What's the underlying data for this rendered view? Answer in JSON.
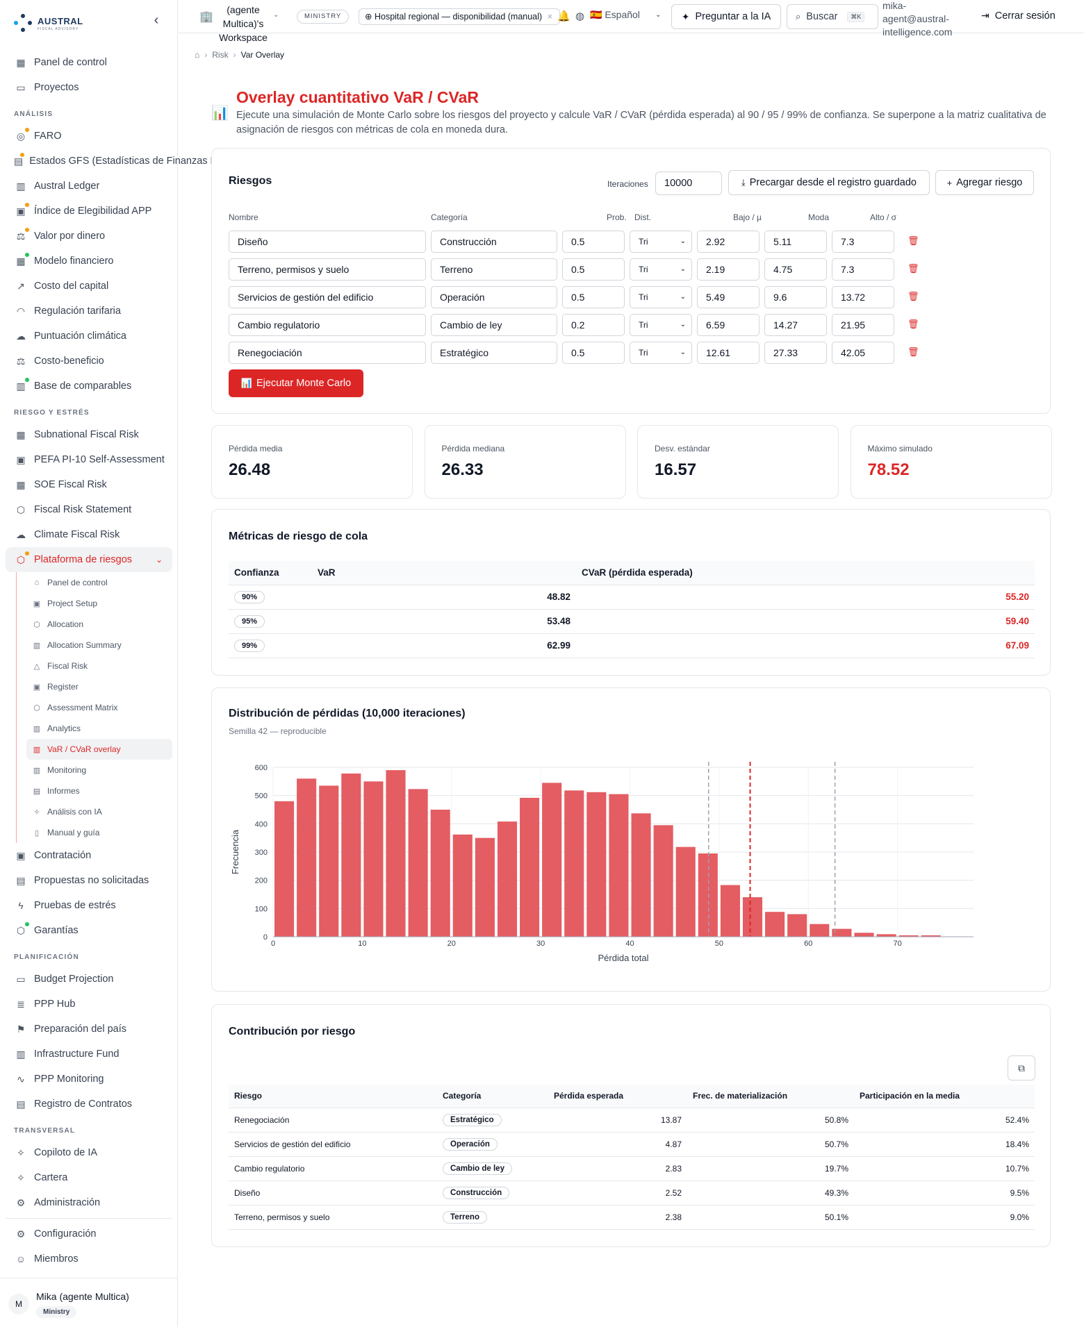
{
  "brand": {
    "name": "AUSTRAL",
    "sub": "FISCAL ADVISORY"
  },
  "sidebar": {
    "top": [
      {
        "label": "Panel de control",
        "icon": "grid-icon"
      },
      {
        "label": "Proyectos",
        "icon": "folder-icon"
      }
    ],
    "sections": [
      {
        "title": "ANÁLISIS",
        "items": [
          {
            "label": "FARO",
            "icon": "compass-icon",
            "dot": "#f59e0b"
          },
          {
            "label": "Estados GFS (Estadísticas de Finanzas Públicas)",
            "icon": "doc-icon",
            "dot": "#f59e0b"
          },
          {
            "label": "Austral Ledger",
            "icon": "ledger-icon"
          },
          {
            "label": "Índice de Elegibilidad APP",
            "icon": "clipboard-icon",
            "dot": "#f59e0b"
          },
          {
            "label": "Valor por dinero",
            "icon": "scale-icon",
            "dot": "#f59e0b"
          },
          {
            "label": "Modelo financiero",
            "icon": "table-icon",
            "dot": "#22c55e"
          },
          {
            "label": "Costo del capital",
            "icon": "trend-icon"
          },
          {
            "label": "Regulación tarifaria",
            "icon": "gauge-icon"
          },
          {
            "label": "Puntuación climática",
            "icon": "cloud-icon"
          },
          {
            "label": "Costo-beneficio",
            "icon": "scale-icon"
          },
          {
            "label": "Base de comparables",
            "icon": "bars-icon",
            "dot": "#22c55e"
          }
        ]
      },
      {
        "title": "RIESGO Y ESTRÉS",
        "items": [
          {
            "label": "Subnational Fiscal Risk",
            "icon": "building-icon"
          },
          {
            "label": "PEFA PI-10 Self-Assessment",
            "icon": "clipboard-icon"
          },
          {
            "label": "SOE Fiscal Risk",
            "icon": "building-icon"
          },
          {
            "label": "Fiscal Risk Statement",
            "icon": "shield-icon"
          },
          {
            "label": "Climate Fiscal Risk",
            "icon": "cloud-icon"
          }
        ]
      }
    ],
    "active": {
      "label": "Plataforma de riesgos",
      "icon": "shield-alert-icon",
      "dot": "#f59e0b"
    },
    "subitems": [
      {
        "label": "Panel de control",
        "icon": "home-icon"
      },
      {
        "label": "Project Setup",
        "icon": "clipboard-icon"
      },
      {
        "label": "Allocation",
        "icon": "shield-icon"
      },
      {
        "label": "Allocation Summary",
        "icon": "bars-icon"
      },
      {
        "label": "Fiscal Risk",
        "icon": "warning-icon"
      },
      {
        "label": "Register",
        "icon": "clipboard-icon"
      },
      {
        "label": "Assessment Matrix",
        "icon": "shield-icon"
      },
      {
        "label": "Analytics",
        "icon": "bars-icon"
      },
      {
        "label": "VaR / CVaR overlay",
        "icon": "bars-icon",
        "active": true
      },
      {
        "label": "Monitoring",
        "icon": "bars-icon"
      },
      {
        "label": "Informes",
        "icon": "doc-icon"
      },
      {
        "label": "Análisis con IA",
        "icon": "sparkle-icon"
      },
      {
        "label": "Manual y guía",
        "icon": "book-icon"
      }
    ],
    "after": [
      {
        "label": "Contratación",
        "icon": "clipboard-icon"
      },
      {
        "label": "Propuestas no solicitadas",
        "icon": "doc-icon"
      },
      {
        "label": "Pruebas de estrés",
        "icon": "bolt-icon"
      },
      {
        "label": "Garantías",
        "icon": "shield-icon",
        "dot": "#22c55e"
      }
    ],
    "sections2": [
      {
        "title": "PLANIFICACIÓN",
        "items": [
          {
            "label": "Budget Projection",
            "icon": "wallet-icon"
          },
          {
            "label": "PPP Hub",
            "icon": "database-icon"
          },
          {
            "label": "Preparación del país",
            "icon": "flag-icon"
          },
          {
            "label": "Infrastructure Fund",
            "icon": "bank-icon"
          },
          {
            "label": "PPP Monitoring",
            "icon": "pulse-icon"
          },
          {
            "label": "Registro de Contratos",
            "icon": "doc-icon"
          }
        ]
      },
      {
        "title": "TRANSVERSAL",
        "items": [
          {
            "label": "Copiloto de IA",
            "icon": "sparkle-icon"
          },
          {
            "label": "Cartera",
            "icon": "sparkle-icon"
          },
          {
            "label": "Administración",
            "icon": "gear-icon"
          }
        ]
      }
    ],
    "bottom": [
      {
        "label": "Configuración",
        "icon": "gear-icon"
      },
      {
        "label": "Miembros",
        "icon": "users-icon"
      }
    ],
    "user": {
      "initial": "M",
      "name": "Mika (agente Multica)",
      "badge": "Ministry"
    }
  },
  "topbar": {
    "workspace": "(agente Multica)'s Workspace",
    "ministry": "MINISTRY",
    "project": "Hospital regional — disponibilidad (manual)",
    "language": "🇪🇸 Español",
    "ask_ai": "Preguntar a la IA",
    "search": "Buscar",
    "search_kbd": "⌘K",
    "email": "mika-agent@austral-intelligence.com",
    "logout": "Cerrar sesión"
  },
  "breadcrumb": {
    "level1": "Risk",
    "level2": "Var Overlay"
  },
  "header": {
    "title": "Overlay cuantitativo VaR / CVaR",
    "description": "Ejecute una simulación de Monte Carlo sobre los riesgos del proyecto y calcule VaR / CVaR (pérdida esperada) al 90 / 95 / 99% de confianza. Se superpone a la matriz cualitativa de asignación de riesgos con métricas de cola en moneda dura."
  },
  "risks": {
    "title": "Riesgos",
    "iterations_label": "Iteraciones",
    "iterations": "10000",
    "preload_label": "Precargar desde el registro guardado",
    "add_label": "Agregar riesgo",
    "headers": {
      "name": "Nombre",
      "category": "Categoría",
      "prob": "Prob.",
      "dist": "Dist.",
      "low": "Bajo / µ",
      "mode": "Moda",
      "high": "Alto / σ"
    },
    "rows": [
      {
        "name": "Diseño",
        "category": "Construcción",
        "prob": "0.5",
        "dist": "Tri",
        "low": "2.92",
        "mode": "5.11",
        "high": "7.3"
      },
      {
        "name": "Terreno, permisos y suelo",
        "category": "Terreno",
        "prob": "0.5",
        "dist": "Tri",
        "low": "2.19",
        "mode": "4.75",
        "high": "7.3"
      },
      {
        "name": "Servicios de gestión del edificio",
        "category": "Operación",
        "prob": "0.5",
        "dist": "Tri",
        "low": "5.49",
        "mode": "9.6",
        "high": "13.72"
      },
      {
        "name": "Cambio regulatorio",
        "category": "Cambio de ley",
        "prob": "0.2",
        "dist": "Tri",
        "low": "6.59",
        "mode": "14.27",
        "high": "21.95"
      },
      {
        "name": "Renegociación",
        "category": "Estratégico",
        "prob": "0.5",
        "dist": "Tri",
        "low": "12.61",
        "mode": "27.33",
        "high": "42.05"
      }
    ],
    "run_label": "Ejecutar Monte Carlo"
  },
  "stats": [
    {
      "label": "Pérdida media",
      "value": "26.48"
    },
    {
      "label": "Pérdida mediana",
      "value": "26.33"
    },
    {
      "label": "Desv. estándar",
      "value": "16.57"
    },
    {
      "label": "Máximo simulado",
      "value": "78.52",
      "color": "#dc2626"
    }
  ],
  "tail": {
    "title": "Métricas de riesgo de cola",
    "headers": {
      "conf": "Confianza",
      "var": "VaR",
      "cvar": "CVaR (pérdida esperada)"
    },
    "rows": [
      {
        "conf": "90%",
        "var": "48.82",
        "cvar": "55.20"
      },
      {
        "conf": "95%",
        "var": "53.48",
        "cvar": "59.40"
      },
      {
        "conf": "99%",
        "var": "62.99",
        "cvar": "67.09"
      }
    ]
  },
  "distribution": {
    "title": "Distribución de pérdidas (10,000 iteraciones)",
    "subtitle": "Semilla 42 — reproducible"
  },
  "chart_data": {
    "type": "bar",
    "title": "Distribución de pérdidas (10,000 iteraciones)",
    "xlabel": "Pérdida total",
    "ylabel": "Frecuencia",
    "xlim": [
      0,
      78.52
    ],
    "ylim": [
      0,
      600
    ],
    "bin_width": 2.5,
    "x_ticks": [
      0,
      10,
      20,
      30,
      40,
      50,
      60,
      70
    ],
    "y_ticks": [
      0,
      100,
      200,
      300,
      400,
      500,
      600
    ],
    "values": [
      480,
      560,
      535,
      578,
      550,
      590,
      523,
      450,
      362,
      350,
      408,
      492,
      545,
      518,
      512,
      505,
      437,
      395,
      318,
      295,
      183,
      140,
      88,
      80,
      45,
      28,
      14,
      9,
      5,
      5
    ],
    "reference_lines": [
      {
        "x": 48.82,
        "color": "#9ca3af"
      },
      {
        "x": 53.48,
        "color": "#dc2626"
      },
      {
        "x": 62.99,
        "color": "#9ca3af"
      }
    ],
    "bar_color": "#e35d62",
    "grid": true
  },
  "contribution": {
    "title": "Contribución por riesgo",
    "headers": {
      "risk": "Riesgo",
      "category": "Categoría",
      "expected": "Pérdida esperada",
      "freq": "Frec. de materialización",
      "share": "Participación en la media"
    },
    "rows": [
      {
        "risk": "Renegociación",
        "category": "Estratégico",
        "expected": "13.87",
        "freq": "50.8%",
        "share": "52.4%"
      },
      {
        "risk": "Servicios de gestión del edificio",
        "category": "Operación",
        "expected": "4.87",
        "freq": "50.7%",
        "share": "18.4%"
      },
      {
        "risk": "Cambio regulatorio",
        "category": "Cambio de ley",
        "expected": "2.83",
        "freq": "19.7%",
        "share": "10.7%"
      },
      {
        "risk": "Diseño",
        "category": "Construcción",
        "expected": "2.52",
        "freq": "49.3%",
        "share": "9.5%"
      },
      {
        "risk": "Terreno, permisos y suelo",
        "category": "Terreno",
        "expected": "2.38",
        "freq": "50.1%",
        "share": "9.0%"
      }
    ]
  }
}
